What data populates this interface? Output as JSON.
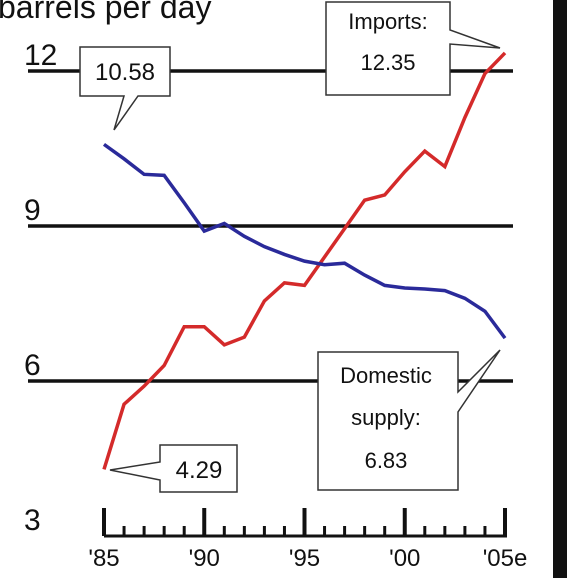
{
  "chart_data": {
    "type": "line",
    "title": "barrels per day",
    "x": [
      1985,
      1986,
      1987,
      1988,
      1989,
      1990,
      1991,
      1992,
      1993,
      1994,
      1995,
      1996,
      1997,
      1998,
      1999,
      2000,
      2001,
      2002,
      2003,
      2004,
      2005
    ],
    "series": [
      {
        "name": "Imports",
        "color": "#d42a2a",
        "values": [
          4.29,
          5.55,
          5.9,
          6.3,
          7.05,
          7.05,
          6.7,
          6.85,
          7.55,
          7.9,
          7.85,
          8.4,
          8.95,
          9.5,
          9.6,
          10.05,
          10.45,
          10.15,
          11.1,
          11.95,
          12.35
        ]
      },
      {
        "name": "Domestic supply",
        "color": "#2a2a9a",
        "values": [
          10.58,
          10.3,
          10.0,
          9.98,
          9.45,
          8.9,
          9.05,
          8.8,
          8.6,
          8.45,
          8.32,
          8.25,
          8.28,
          8.05,
          7.85,
          7.8,
          7.78,
          7.75,
          7.6,
          7.35,
          6.83
        ]
      }
    ],
    "ylim": [
      3,
      12
    ],
    "yticks": [
      "12",
      "9",
      "6",
      "3"
    ],
    "ytick_values": [
      12,
      9,
      6,
      3
    ],
    "xticks": [
      "'85",
      "'90",
      "'95",
      "'00",
      "'05e"
    ],
    "xtick_values": [
      1985,
      1990,
      1995,
      2000,
      2005
    ],
    "grid": true,
    "annotations": {
      "start_domestic": "10.58",
      "start_imports": "4.29",
      "imports_label": "Imports:",
      "imports_value": "12.35",
      "domestic_label_1": "Domestic",
      "domestic_label_2": "supply:",
      "domestic_value": "6.83"
    }
  }
}
